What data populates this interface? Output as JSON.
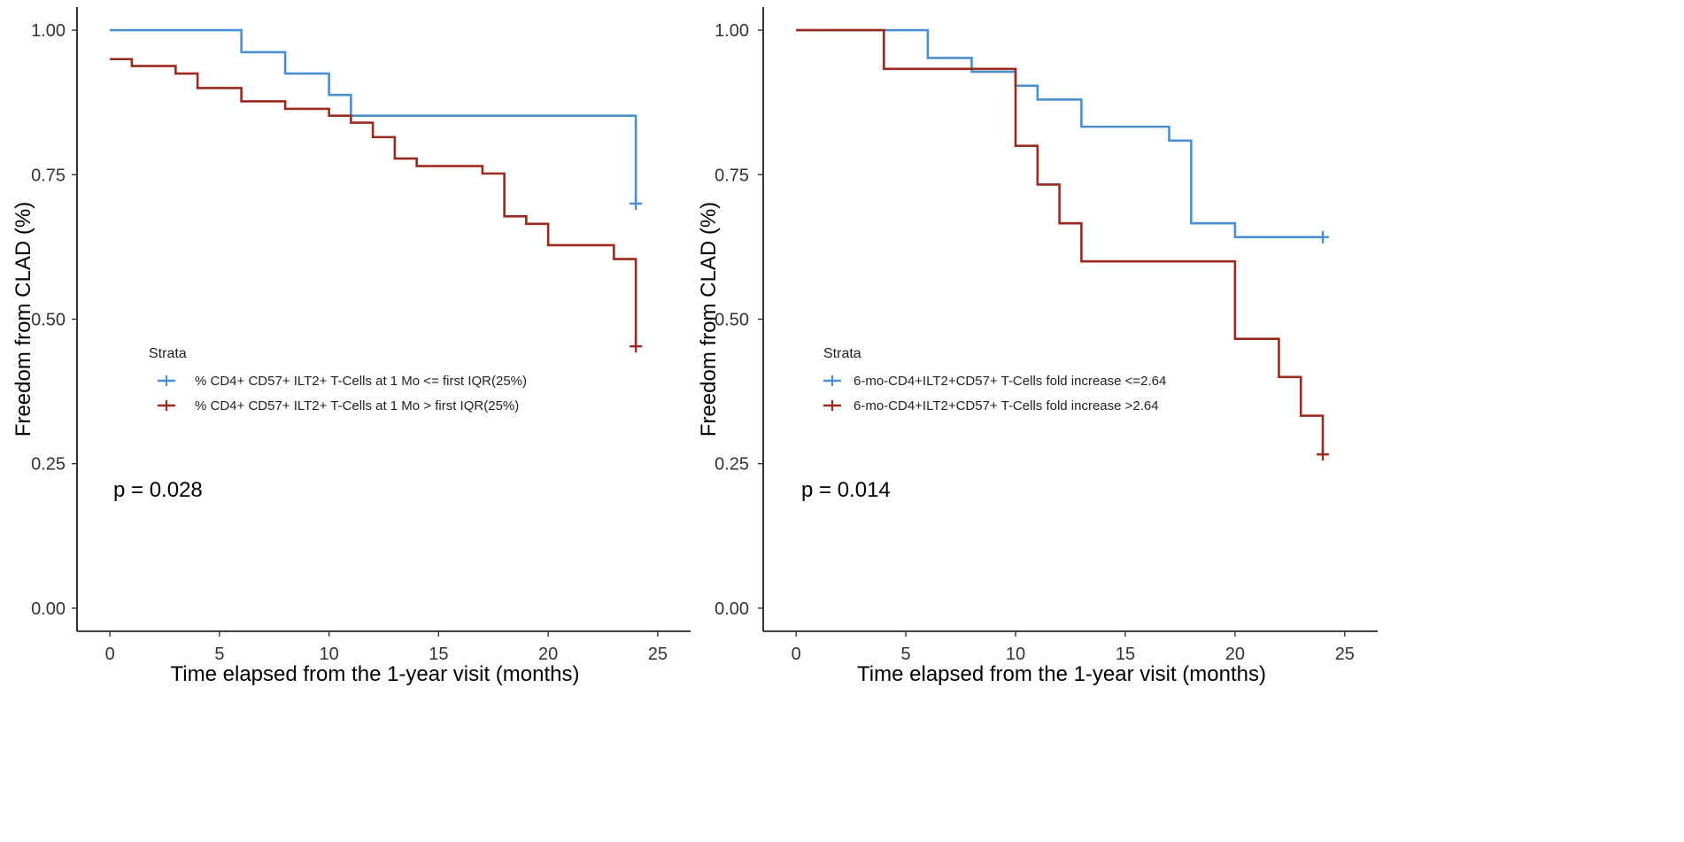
{
  "chart_data": [
    {
      "type": "line",
      "subtype": "kaplan-meier-step",
      "xlabel": "Time elapsed from the 1-year visit (months)",
      "ylabel": "Freedom from CLAD (%)",
      "xlim": [
        -1.5,
        26.5
      ],
      "ylim": [
        -0.04,
        1.04
      ],
      "x_ticks": [
        0,
        5,
        10,
        15,
        20,
        25
      ],
      "y_ticks": [
        0.0,
        0.25,
        0.5,
        0.75,
        1.0
      ],
      "x_tick_labels": [
        "0",
        "5",
        "10",
        "15",
        "20",
        "25"
      ],
      "y_tick_labels": [
        "0.00",
        "0.25",
        "0.50",
        "0.75",
        "1.00"
      ],
      "legend_title": "Strata",
      "legend_position": "center-left",
      "p_value": "p = 0.028",
      "series": [
        {
          "name": "% CD4+ CD57+ ILT2+ T-Cells at 1 Mo <= first IQR(25%)",
          "color": "#4a90d0",
          "x": [
            0,
            6,
            8,
            10,
            11,
            24
          ],
          "y": [
            1.0,
            0.962,
            0.925,
            0.888,
            0.852,
            0.7
          ],
          "censor": [
            [
              24,
              0.7
            ]
          ]
        },
        {
          "name": "% CD4+ CD57+ ILT2+ T-Cells at 1 Mo > first IQR(25%)",
          "color": "#9b2a1e",
          "x": [
            0,
            1,
            3,
            4,
            6,
            8,
            10,
            11,
            12,
            13,
            14,
            17,
            18,
            19,
            20,
            23,
            24
          ],
          "y": [
            0.95,
            0.938,
            0.925,
            0.9,
            0.877,
            0.864,
            0.852,
            0.84,
            0.815,
            0.778,
            0.765,
            0.752,
            0.678,
            0.665,
            0.628,
            0.604,
            0.453
          ],
          "censor": [
            [
              24,
              0.453
            ]
          ]
        }
      ]
    },
    {
      "type": "line",
      "subtype": "kaplan-meier-step",
      "xlabel": "Time elapsed from the 1-year visit (months)",
      "ylabel": "Freedom from CLAD (%)",
      "xlim": [
        -1.5,
        26.5
      ],
      "ylim": [
        -0.04,
        1.04
      ],
      "x_ticks": [
        0,
        5,
        10,
        15,
        20,
        25
      ],
      "y_ticks": [
        0.0,
        0.25,
        0.5,
        0.75,
        1.0
      ],
      "x_tick_labels": [
        "0",
        "5",
        "10",
        "15",
        "20",
        "25"
      ],
      "y_tick_labels": [
        "0.00",
        "0.25",
        "0.50",
        "0.75",
        "1.00"
      ],
      "legend_title": "Strata",
      "legend_position": "center-right",
      "p_value": "p = 0.014",
      "series": [
        {
          "name": "6-mo-CD4+ILT2+CD57+ T-Cells fold increase <=2.64",
          "color": "#4a90d0",
          "x": [
            0,
            6,
            8,
            10,
            11,
            13,
            17,
            18,
            20,
            24
          ],
          "y": [
            1.0,
            0.952,
            0.928,
            0.904,
            0.88,
            0.833,
            0.809,
            0.666,
            0.642,
            0.642
          ],
          "censor": [
            [
              24,
              0.642
            ]
          ]
        },
        {
          "name": "6-mo-CD4+ILT2+CD57+ T-Cells fold increase >2.64",
          "color": "#9b2a1e",
          "x": [
            0,
            4,
            10,
            11,
            12,
            13,
            20,
            22,
            23,
            24
          ],
          "y": [
            1.0,
            0.933,
            0.8,
            0.733,
            0.666,
            0.6,
            0.466,
            0.4,
            0.333,
            0.266
          ],
          "censor": [
            [
              24,
              0.266
            ]
          ]
        }
      ]
    }
  ]
}
